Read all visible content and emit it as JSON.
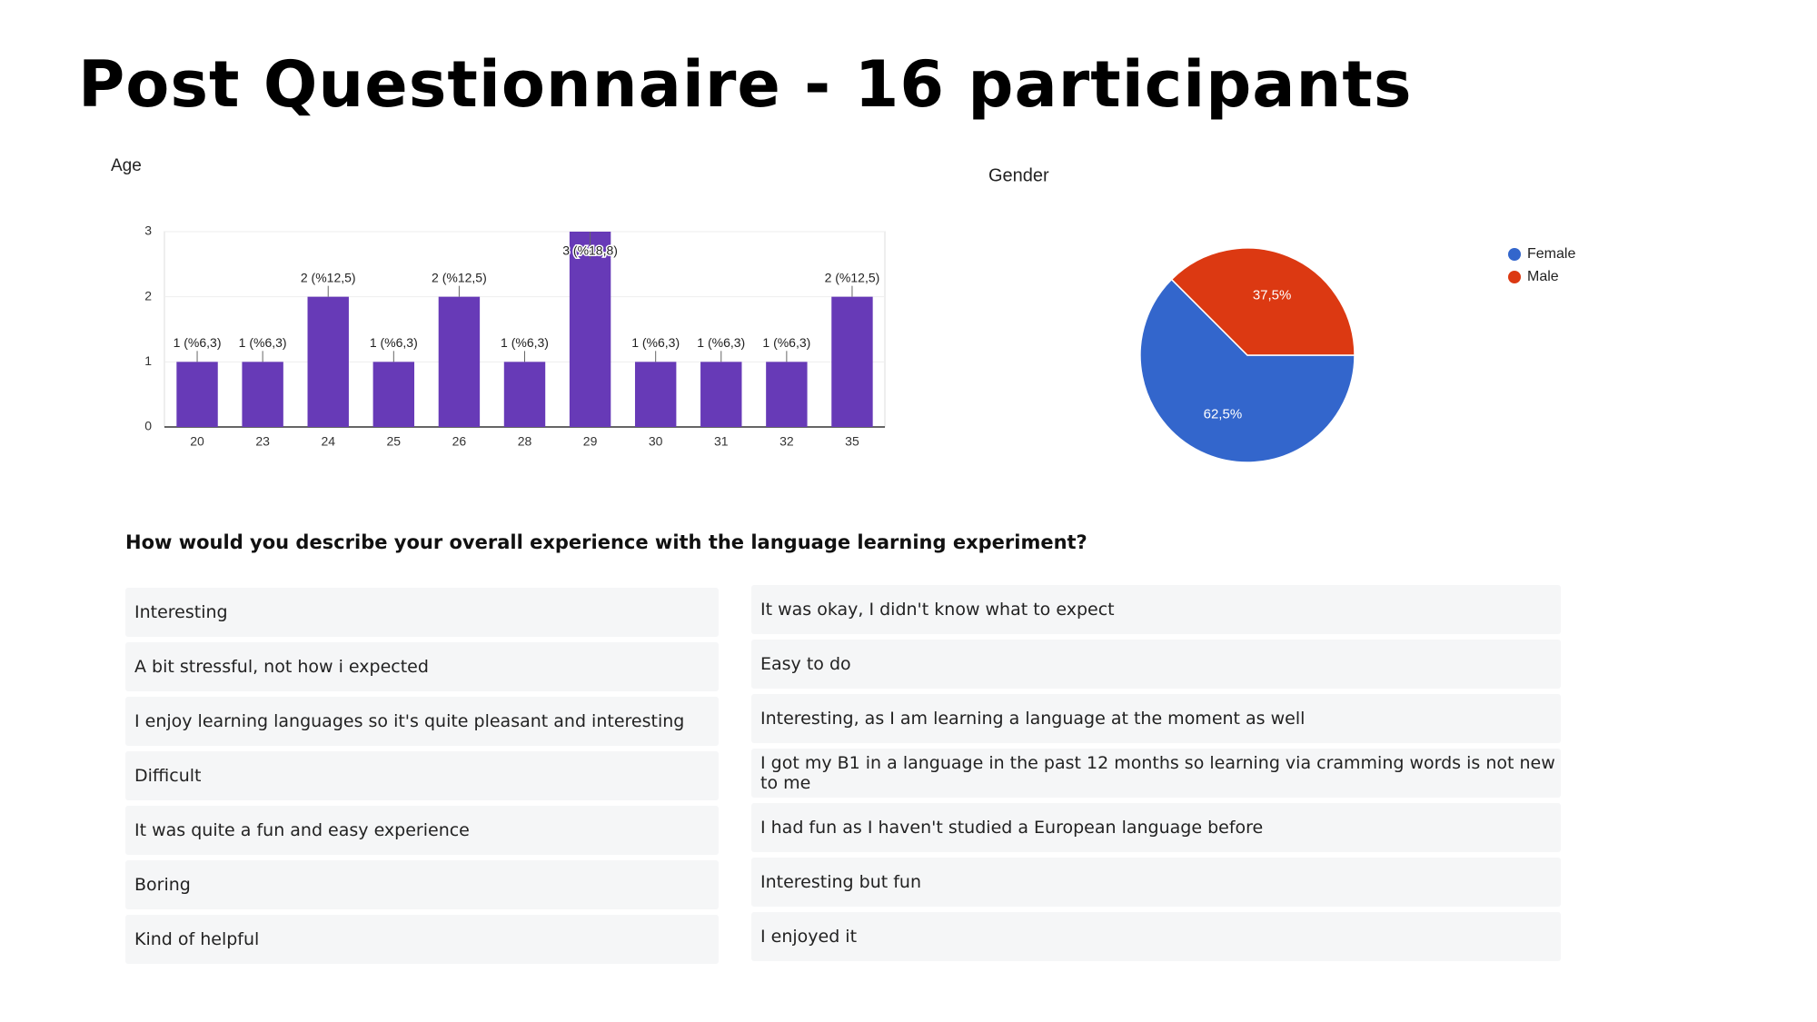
{
  "title": "Post Questionnaire - 16 participants",
  "chart_data": [
    {
      "type": "bar",
      "title": "Age",
      "categories": [
        "20",
        "23",
        "24",
        "25",
        "26",
        "28",
        "29",
        "30",
        "31",
        "32",
        "35"
      ],
      "values": [
        1,
        1,
        2,
        1,
        2,
        1,
        3,
        1,
        1,
        1,
        2
      ],
      "value_labels": [
        "1 (%6,3)",
        "1 (%6,3)",
        "2 (%12,5)",
        "1 (%6,3)",
        "2 (%12,5)",
        "1 (%6,3)",
        "3 (%18,8)",
        "1 (%6,3)",
        "1 (%6,3)",
        "1 (%6,3)",
        "2 (%12,5)"
      ],
      "color": "#673ab7",
      "ylim": [
        0,
        3
      ],
      "yticks": [
        0,
        1,
        2,
        3
      ],
      "grid": true
    },
    {
      "type": "pie",
      "title": "Gender",
      "categories": [
        "Female",
        "Male"
      ],
      "values": [
        62.5,
        37.5
      ],
      "value_labels": [
        "62,5%",
        "37,5%"
      ],
      "colors": [
        "#3366cc",
        "#dc3912"
      ],
      "legend": "right"
    }
  ],
  "question": "How would you describe your overall experience with the language learning experiment?",
  "responses": {
    "left": [
      "Interesting",
      "A bit stressful, not how i expected",
      "I enjoy learning languages so it's quite pleasant and interesting",
      "Difficult",
      "It was quite a fun and easy experience",
      "Boring",
      "Kind of helpful"
    ],
    "right": [
      "It was okay, I didn't know what to expect",
      "Easy to do",
      "Interesting, as I am learning a language at the moment as well",
      "I got my B1 in a language in the past 12 months so learning via cramming words is not new to me",
      "I had fun as I haven't studied a European language before",
      "Interesting but fun",
      "I enjoyed it"
    ]
  }
}
